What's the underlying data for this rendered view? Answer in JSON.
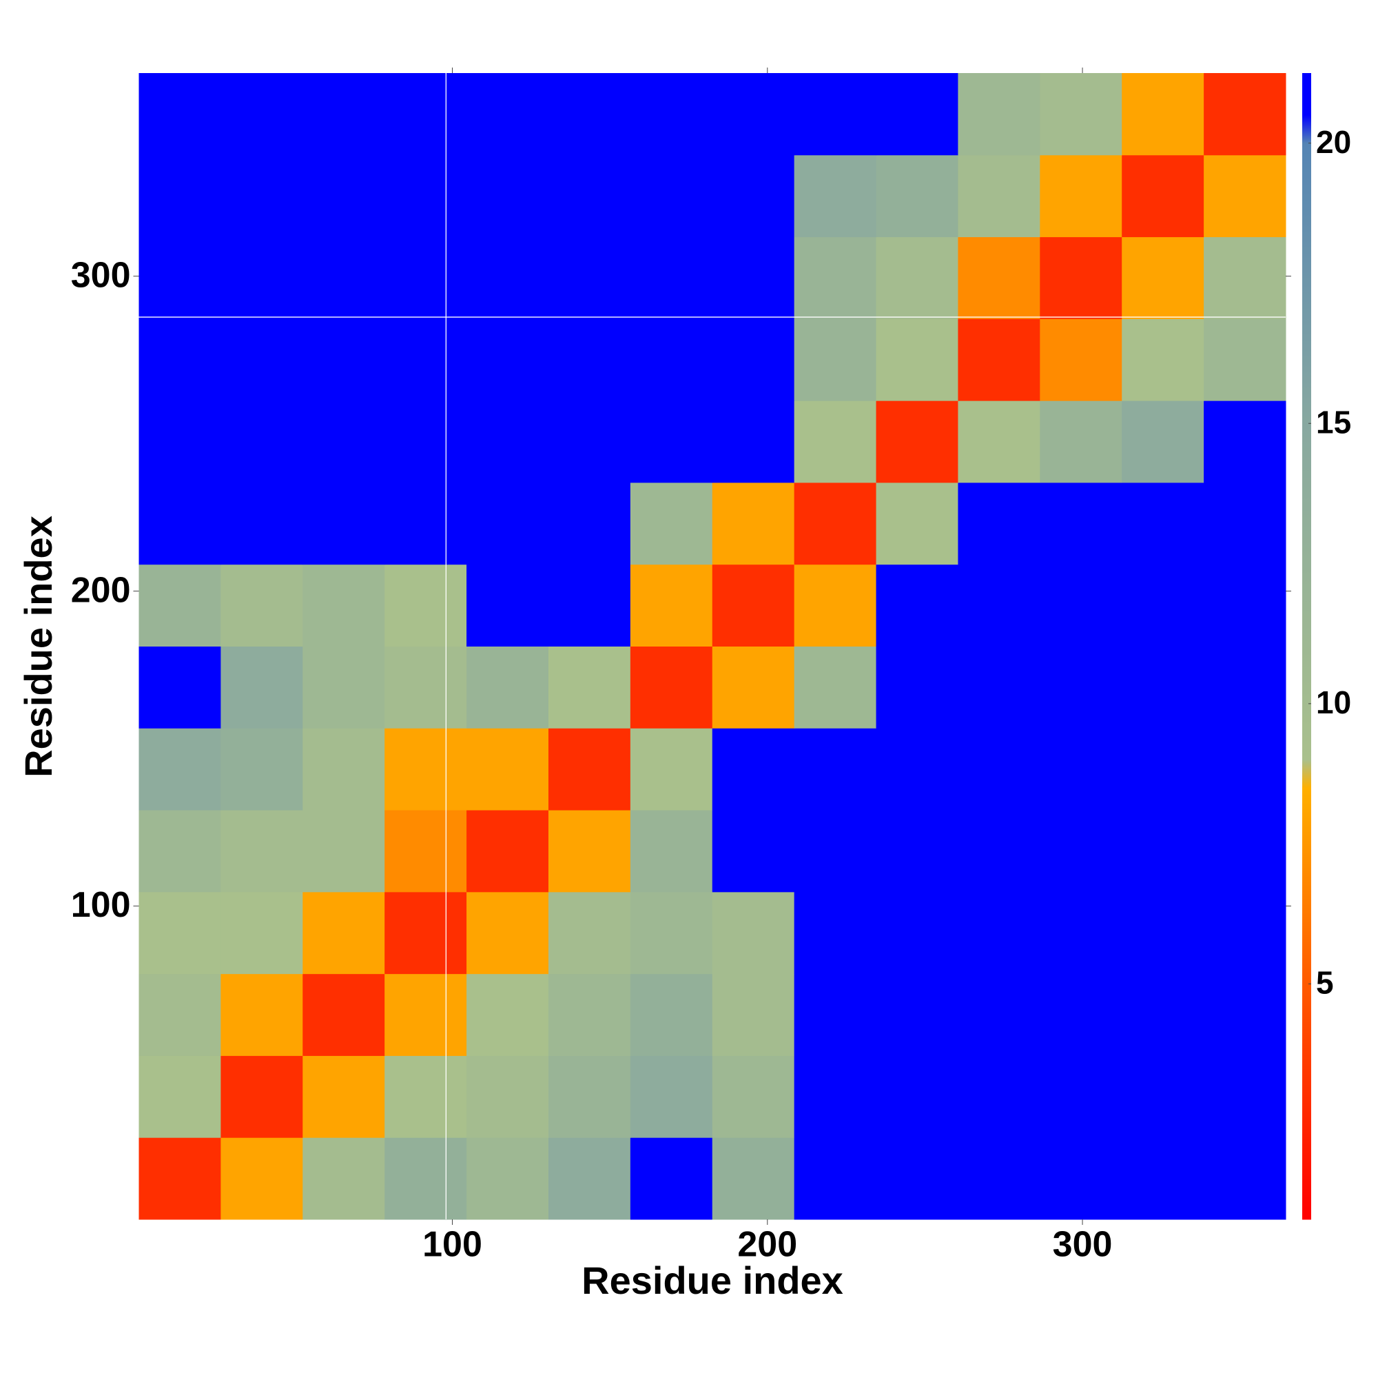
{
  "chart_data": {
    "type": "heatmap",
    "x_label": "Residue index",
    "y_label": "Residue index",
    "x": [
      13.5,
      39.5,
      65.5,
      91.5,
      117.5,
      143.5,
      169.5,
      195.5,
      221.5,
      247.5,
      273.5,
      299.5,
      325.5,
      351.5
    ],
    "y": [
      13.5,
      39.5,
      65.5,
      91.5,
      117.5,
      143.5,
      169.5,
      195.5,
      221.5,
      247.5,
      273.5,
      299.5,
      325.5,
      351.5
    ],
    "z": [
      [
        3,
        8,
        10,
        13,
        11,
        14,
        21,
        13,
        21,
        21,
        21,
        21,
        21,
        21
      ],
      [
        9,
        3,
        8,
        9,
        10,
        12,
        14,
        11,
        21,
        21,
        21,
        21,
        21,
        21
      ],
      [
        10,
        8,
        3,
        8,
        9,
        11,
        13,
        10,
        21,
        21,
        21,
        21,
        21,
        21
      ],
      [
        9,
        9,
        8,
        3,
        8,
        10,
        11,
        10,
        21,
        21,
        21,
        21,
        21,
        21
      ],
      [
        11,
        10,
        10,
        7,
        3,
        8,
        12,
        21,
        21,
        21,
        21,
        21,
        21,
        21
      ],
      [
        14,
        13,
        10,
        8,
        8,
        3,
        9,
        21,
        21,
        21,
        21,
        21,
        21,
        21
      ],
      [
        21,
        14,
        11,
        10,
        12,
        9,
        3,
        8,
        11,
        21,
        21,
        21,
        21,
        21
      ],
      [
        12,
        10,
        11,
        9,
        21,
        21,
        8,
        3,
        8,
        21,
        21,
        21,
        21,
        21
      ],
      [
        21,
        21,
        21,
        21,
        21,
        21,
        11,
        8,
        3,
        9,
        21,
        21,
        21,
        21
      ],
      [
        21,
        21,
        21,
        21,
        21,
        21,
        21,
        21,
        9,
        3,
        9,
        12,
        14,
        21
      ],
      [
        21,
        21,
        21,
        21,
        21,
        21,
        21,
        21,
        12,
        9,
        3,
        7,
        9,
        11
      ],
      [
        21,
        21,
        21,
        21,
        21,
        21,
        21,
        21,
        12,
        10,
        7,
        3,
        8,
        10
      ],
      [
        21,
        21,
        21,
        21,
        21,
        21,
        21,
        21,
        14,
        13,
        10,
        8,
        3,
        8
      ],
      [
        21,
        21,
        21,
        21,
        21,
        21,
        21,
        21,
        21,
        21,
        11,
        10,
        8,
        3
      ]
    ],
    "xlim": [
      0.5,
      364.5
    ],
    "ylim": [
      0.5,
      364.5
    ],
    "xticks": [
      100,
      200,
      300
    ],
    "yticks": [
      100,
      200,
      300
    ],
    "vlines": [
      98
    ],
    "hlines": [
      287
    ],
    "zlim": [
      0.8,
      21.25
    ],
    "zticks": [
      5,
      10,
      15,
      20
    ],
    "colorscale": [
      [
        0.8,
        "#ff0000"
      ],
      [
        5,
        "#ff5a00"
      ],
      [
        8.5,
        "#ffb000"
      ],
      [
        9,
        "#a9c08c"
      ],
      [
        15,
        "#88a8a0"
      ],
      [
        20,
        "#5484b4"
      ],
      [
        20.5,
        "#0000ff"
      ],
      [
        21.25,
        "#0000ff"
      ]
    ]
  }
}
